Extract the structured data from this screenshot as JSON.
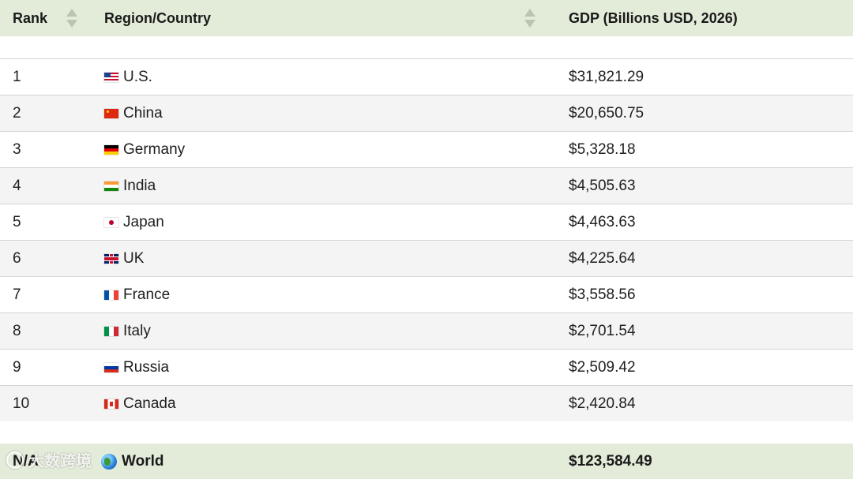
{
  "table": {
    "headers": {
      "rank": "Rank",
      "country": "Region/Country",
      "gdp": "GDP (Billions USD, 2026)"
    },
    "rows": [
      {
        "rank": "1",
        "country": "U.S.",
        "flag": "us-flag-icon",
        "gdp": "$31,821.29"
      },
      {
        "rank": "2",
        "country": "China",
        "flag": "china-flag-icon",
        "gdp": "$20,650.75"
      },
      {
        "rank": "3",
        "country": "Germany",
        "flag": "germany-flag-icon",
        "gdp": "$5,328.18"
      },
      {
        "rank": "4",
        "country": "India",
        "flag": "india-flag-icon",
        "gdp": "$4,505.63"
      },
      {
        "rank": "5",
        "country": "Japan",
        "flag": "japan-flag-icon",
        "gdp": "$4,463.63"
      },
      {
        "rank": "6",
        "country": "UK",
        "flag": "uk-flag-icon",
        "gdp": "$4,225.64"
      },
      {
        "rank": "7",
        "country": "France",
        "flag": "france-flag-icon",
        "gdp": "$3,558.56"
      },
      {
        "rank": "8",
        "country": "Italy",
        "flag": "italy-flag-icon",
        "gdp": "$2,701.54"
      },
      {
        "rank": "9",
        "country": "Russia",
        "flag": "russia-flag-icon",
        "gdp": "$2,509.42"
      },
      {
        "rank": "10",
        "country": "Canada",
        "flag": "canada-flag-icon",
        "gdp": "$2,420.84"
      }
    ],
    "total": {
      "rank": "N/A",
      "country": "World",
      "icon": "globe-icon",
      "gdp": "$123,584.49"
    }
  },
  "watermark": {
    "text": "大数跨境"
  },
  "colors": {
    "header_bg": "#e3ecd9",
    "alt_row_bg": "#f4f4f4",
    "border": "#d4d4d4",
    "sort_arrow": "#b9c4b3"
  }
}
